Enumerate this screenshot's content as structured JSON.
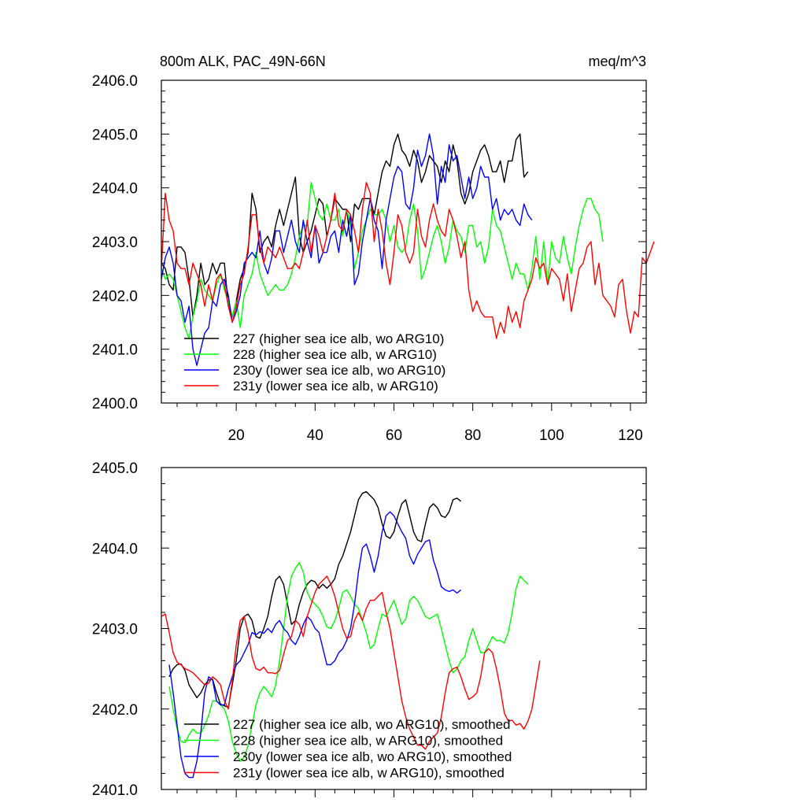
{
  "colors": {
    "s227": "#000000",
    "s228": "#00ff00",
    "s230": "#0000ff",
    "s231": "#ff0000",
    "axis": "#000000",
    "background": "#ffffff"
  },
  "chart_data": [
    {
      "type": "line",
      "title_left": "800m ALK, PAC_49N-66N",
      "title_right": "meq/m^3",
      "xlabel": "",
      "ylabel": "",
      "xlim": [
        1,
        124
      ],
      "ylim": [
        2400.0,
        2406.0
      ],
      "xticks": [
        20,
        40,
        60,
        80,
        100,
        120
      ],
      "yticks": [
        2400.0,
        2401.0,
        2402.0,
        2403.0,
        2404.0,
        2405.0,
        2406.0
      ],
      "ytick_labels": [
        "2400.0",
        "2401.0",
        "2402.0",
        "2403.0",
        "2404.0",
        "2405.0",
        "2406.0"
      ],
      "grid": false,
      "legend_position": "bottom-left",
      "series": [
        {
          "name": "227 (higher sea ice alb, wo ARG10)",
          "color_key": "s227",
          "x_start": 1,
          "values": [
            2402.6,
            2402.5,
            2402.2,
            2402.1,
            2402.9,
            2402.9,
            2402.8,
            2402.3,
            2401.6,
            2402.0,
            2402.6,
            2402.2,
            2402.3,
            2402.6,
            2402.4,
            2402.6,
            2402.6,
            2401.8,
            2401.6,
            2401.9,
            2402.3,
            2402.5,
            2402.8,
            2403.9,
            2403.6,
            2402.8,
            2403.0,
            2403.1,
            2402.9,
            2403.3,
            2403.6,
            2403.3,
            2403.6,
            2403.9,
            2404.2,
            2403.1,
            2402.8,
            2403.0,
            2403.2,
            2403.5,
            2403.8,
            2403.7,
            2403.1,
            2403.4,
            2403.8,
            2403.7,
            2403.6,
            2403.6,
            2403.0,
            2403.7,
            2403.6,
            2403.8,
            2403.8,
            2403.8,
            2403.5,
            2403.9,
            2404.3,
            2404.5,
            2404.4,
            2404.8,
            2405.0,
            2404.7,
            2404.6,
            2404.4,
            2404.7,
            2404.5,
            2404.1,
            2404.3,
            2404.6,
            2404.5,
            2404.4,
            2404.1,
            2404.5,
            2404.3,
            2404.8,
            2404.5,
            2403.9,
            2403.7,
            2403.9,
            2404.3,
            2404.5,
            2404.7,
            2404.8,
            2404.6,
            2404.3,
            2404.3,
            2404.5,
            2404.1,
            2404.5,
            2404.5,
            2404.9,
            2405.0,
            2404.2,
            2404.3
          ]
        },
        {
          "name": "228 (higher sea ice alb, w ARG10)",
          "color_key": "s228",
          "x_start": 1,
          "values": [
            2402.5,
            2402.3,
            2402.4,
            2402.3,
            2402.0,
            2401.7,
            2401.4,
            2401.2,
            2401.6,
            2401.9,
            2402.3,
            2402.1,
            2402.0,
            2401.9,
            2402.2,
            2402.4,
            2402.1,
            2401.9,
            2401.6,
            2401.9,
            2401.4,
            2402.0,
            2402.2,
            2402.4,
            2402.8,
            2402.4,
            2402.2,
            2402.0,
            2402.1,
            2402.2,
            2402.1,
            2402.1,
            2402.2,
            2402.4,
            2402.7,
            2403.1,
            2403.3,
            2403.3,
            2404.1,
            2403.8,
            2403.5,
            2403.4,
            2403.7,
            2403.4,
            2403.4,
            2403.6,
            2403.1,
            2403.6,
            2403.3,
            2402.5,
            2402.8,
            2403.2,
            2403.4,
            2403.6,
            2403.5,
            2403.5,
            2403.6,
            2403.4,
            2403.0,
            2403.3,
            2402.9,
            2402.8,
            2402.9,
            2403.4,
            2403.7,
            2403.2,
            2402.3,
            2402.5,
            2402.8,
            2403.1,
            2403.3,
            2403.0,
            2402.6,
            2402.9,
            2403.4,
            2403.2,
            2403.1,
            2402.8,
            2403.3,
            2403.3,
            2402.9,
            2403.0,
            2402.6,
            2402.9,
            2403.6,
            2403.3,
            2403.2,
            2402.9,
            2402.6,
            2402.3,
            2402.6,
            2402.4,
            2402.4,
            2402.1,
            2402.5,
            2403.1,
            2402.3,
            2403.0,
            2402.2,
            2403.0,
            2402.7,
            2402.6,
            2403.1,
            2402.7,
            2402.4,
            2402.9,
            2403.3,
            2403.6,
            2403.8,
            2403.8,
            2403.6,
            2403.5,
            2403.0
          ]
        },
        {
          "name": "230y (lower sea ice alb, wo ARG10)",
          "color_key": "s230",
          "x_start": 1,
          "values": [
            2402.3,
            2402.7,
            2402.9,
            2402.6,
            2402.0,
            2401.9,
            2401.5,
            2401.8,
            2401.0,
            2400.7,
            2401.0,
            2401.3,
            2401.4,
            2401.9,
            2401.8,
            2402.2,
            2402.3,
            2402.0,
            2401.5,
            2401.7,
            2402.0,
            2402.6,
            2402.7,
            2402.8,
            2402.7,
            2403.2,
            2402.6,
            2402.4,
            2402.7,
            2403.2,
            2403.2,
            2402.8,
            2403.1,
            2403.4,
            2403.0,
            2402.8,
            2403.4,
            2403.0,
            2402.7,
            2403.3,
            2402.6,
            2402.8,
            2402.8,
            2403.1,
            2403.2,
            2402.8,
            2403.4,
            2403.1,
            2403.5,
            2402.2,
            2402.4,
            2403.0,
            2403.4,
            2403.8,
            2403.4,
            2403.2,
            2402.5,
            2403.4,
            2403.8,
            2404.2,
            2404.4,
            2404.3,
            2403.7,
            2403.6,
            2404.0,
            2404.7,
            2404.4,
            2404.6,
            2405.0,
            2404.6,
            2403.7,
            2404.4,
            2404.1,
            2404.8,
            2404.5,
            2404.6,
            2404.2,
            2403.8,
            2404.2,
            2403.8,
            2404.0,
            2404.4,
            2404.2,
            2404.2,
            2403.6,
            2403.8,
            2403.4,
            2403.6,
            2403.5,
            2403.6,
            2403.4,
            2403.3,
            2403.7,
            2403.5,
            2403.4
          ]
        },
        {
          "name": "231y (lower sea ice alb, w ARG10)",
          "color_key": "s231",
          "x_start": 1,
          "values": [
            2402.5,
            2403.9,
            2403.4,
            2403.2,
            2402.6,
            2402.5,
            2402.5,
            2402.2,
            2402.6,
            2402.4,
            2402.2,
            2401.8,
            2402.2,
            2401.9,
            2402.3,
            2402.4,
            2402.2,
            2401.8,
            2401.5,
            2401.8,
            2402.2,
            2402.4,
            2402.9,
            2403.5,
            2403.5,
            2402.9,
            2402.6,
            2402.9,
            2402.8,
            2402.7,
            2402.9,
            2402.7,
            2402.5,
            2402.5,
            2402.6,
            2402.5,
            2402.8,
            2403.4,
            2402.8,
            2403.3,
            2403.1,
            2402.8,
            2403.1,
            2403.4,
            2403.9,
            2403.3,
            2403.2,
            2403.6,
            2403.5,
            2403.2,
            2402.8,
            2403.6,
            2404.1,
            2403.9,
            2403.0,
            2403.6,
            2403.2,
            2402.6,
            2402.2,
            2402.8,
            2403.5,
            2403.3,
            2402.8,
            2402.6,
            2402.8,
            2403.6,
            2403.1,
            2402.9,
            2403.4,
            2403.7,
            2403.4,
            2403.2,
            2403.1,
            2403.6,
            2403.4,
            2403.1,
            2402.7,
            2403.0,
            2402.1,
            2401.7,
            2401.9,
            2401.7,
            2401.6,
            2401.6,
            2401.6,
            2401.2,
            2401.5,
            2401.3,
            2401.8,
            2401.5,
            2401.7,
            2401.4,
            2401.9,
            2402.1,
            2402.3,
            2402.7,
            2402.5,
            2402.6,
            2402.2,
            2402.5,
            2402.4,
            2402.3,
            2401.9,
            2402.4,
            2401.7,
            2402.1,
            2402.5,
            2402.6,
            2402.9,
            2403.0,
            2402.2,
            2402.6,
            2402.0,
            2401.9,
            2401.8,
            2401.6,
            2402.2,
            2402.3,
            2401.7,
            2401.3,
            2401.7,
            2401.6,
            2402.7,
            2402.6,
            2402.8,
            2403.0
          ]
        }
      ]
    },
    {
      "type": "line",
      "title_left": "",
      "title_right": "",
      "xlabel": "",
      "ylabel": "",
      "xlim": [
        1,
        124
      ],
      "ylim": [
        2401.0,
        2405.0
      ],
      "xticks": [
        20,
        40,
        60,
        80,
        100,
        120
      ],
      "yticks": [
        2401.0,
        2402.0,
        2403.0,
        2404.0,
        2405.0
      ],
      "ytick_labels": [
        "2401.0",
        "2402.0",
        "2403.0",
        "2404.0",
        "2405.0"
      ],
      "grid": false,
      "legend_position": "bottom-left",
      "series": [
        {
          "name": "227 (higher sea ice alb, wo ARG10), smoothed",
          "color_key": "s227",
          "x_start": 3,
          "values": [
            2402.4,
            2402.5,
            2402.55,
            2402.56,
            2402.48,
            2402.3,
            2402.22,
            2402.14,
            2402.2,
            2402.3,
            2402.36,
            2402.37,
            2402.2,
            2402.06,
            2402.04,
            2402.02,
            2402.3,
            2402.6,
            2403.0,
            2403.15,
            2403.18,
            2403.1,
            2402.9,
            2402.88,
            2403.0,
            2403.15,
            2403.4,
            2403.6,
            2403.65,
            2403.55,
            2403.3,
            2403.05,
            2403.1,
            2403.3,
            2403.45,
            2403.55,
            2403.6,
            2403.58,
            2403.5,
            2403.55,
            2403.5,
            2403.55,
            2403.62,
            2403.8,
            2403.9,
            2404.05,
            2404.2,
            2404.4,
            2404.6,
            2404.68,
            2404.7,
            2404.65,
            2404.6,
            2404.5,
            2404.3,
            2404.15,
            2404.12,
            2404.2,
            2404.4,
            2404.55,
            2404.6,
            2404.4,
            2404.2,
            2404.1,
            2404.08,
            2404.3,
            2404.5,
            2404.55,
            2404.5,
            2404.4,
            2404.38,
            2404.45,
            2404.6,
            2404.62,
            2404.58
          ]
        },
        {
          "name": "228 (higher sea ice alb, w ARG10), smoothed",
          "color_key": "s228",
          "x_start": 3,
          "values": [
            2402.28,
            2402.0,
            2401.75,
            2401.6,
            2401.58,
            2401.68,
            2401.75,
            2401.7,
            2401.7,
            2401.8,
            2401.92,
            2402.1,
            2402.1,
            2402.05,
            2402.0,
            2401.85,
            2401.6,
            2401.45,
            2401.35,
            2401.4,
            2401.55,
            2401.8,
            2402.05,
            2402.2,
            2402.28,
            2402.22,
            2402.15,
            2402.3,
            2402.6,
            2403.0,
            2403.4,
            2403.65,
            2403.75,
            2403.82,
            2403.7,
            2403.45,
            2403.35,
            2403.3,
            2403.25,
            2403.15,
            2403.02,
            2403.0,
            2403.1,
            2403.25,
            2403.45,
            2403.48,
            2403.4,
            2403.3,
            2403.25,
            2403.1,
            2402.95,
            2402.75,
            2402.8,
            2403.0,
            2403.18,
            2403.15,
            2403.25,
            2403.35,
            2403.2,
            2403.05,
            2403.12,
            2403.35,
            2403.4,
            2403.35,
            2403.25,
            2403.15,
            2403.12,
            2403.15,
            2403.18,
            2403.0,
            2402.8,
            2402.6,
            2402.45,
            2402.5,
            2402.6,
            2402.65,
            2402.85,
            2403.0,
            2402.85,
            2402.7,
            2402.7,
            2402.8,
            2402.9,
            2402.85,
            2402.85,
            2402.82,
            2402.95,
            2403.2,
            2403.5,
            2403.65,
            2403.6,
            2403.55
          ]
        },
        {
          "name": "230y (lower sea ice alb, wo ARG10), smoothed",
          "color_key": "s230",
          "x_start": 3,
          "values": [
            2402.55,
            2402.2,
            2401.8,
            2401.4,
            2401.2,
            2401.15,
            2401.15,
            2401.35,
            2401.7,
            2402.2,
            2402.4,
            2402.36,
            2402.1,
            2402.05,
            2402.05,
            2402.25,
            2402.4,
            2402.55,
            2402.6,
            2402.7,
            2402.8,
            2402.95,
            2402.92,
            2402.96,
            2402.94,
            2403.0,
            2402.95,
            2403.05,
            2403.1,
            2403.0,
            2402.95,
            2402.85,
            2402.8,
            2402.9,
            2403.05,
            2403.15,
            2403.1,
            2403.0,
            2402.95,
            2402.75,
            2402.55,
            2402.55,
            2402.6,
            2402.7,
            2402.75,
            2402.85,
            2403.0,
            2403.3,
            2403.7,
            2404.0,
            2404.05,
            2403.9,
            2403.7,
            2403.9,
            2404.2,
            2404.4,
            2404.45,
            2404.4,
            2404.3,
            2404.2,
            2404.12,
            2403.9,
            2403.8,
            2403.92,
            2404.0,
            2404.08,
            2404.1,
            2403.85,
            2403.7,
            2403.52,
            2403.48,
            2403.46,
            2403.48,
            2403.44,
            2403.48
          ]
        },
        {
          "name": "231y (lower sea ice alb, w ARG10), smoothed",
          "color_key": "s231",
          "x_start": 1,
          "values": [
            2403.15,
            2403.18,
            2402.95,
            2402.7,
            2402.58,
            2402.55,
            2402.5,
            2402.48,
            2402.45,
            2402.4,
            2402.35,
            2402.3,
            2402.32,
            2402.4,
            2402.36,
            2402.3,
            2402.1,
            2402.0,
            2402.35,
            2402.8,
            2403.1,
            2403.15,
            2402.95,
            2402.65,
            2402.5,
            2402.48,
            2402.52,
            2402.45,
            2402.45,
            2402.44,
            2402.48,
            2402.68,
            2402.85,
            2402.9,
            2403.1,
            2403.05,
            2402.9,
            2403.15,
            2403.3,
            2403.45,
            2403.55,
            2403.6,
            2403.65,
            2403.55,
            2403.4,
            2403.2,
            2403.0,
            2402.88,
            2402.9,
            2403.1,
            2403.2,
            2403.1,
            2403.25,
            2403.35,
            2403.35,
            2403.4,
            2403.45,
            2403.2,
            2403.0,
            2402.7,
            2402.4,
            2402.1,
            2401.9,
            2401.75,
            2401.65,
            2401.55,
            2401.55,
            2401.5,
            2401.6,
            2401.65,
            2401.7,
            2401.9,
            2402.2,
            2402.45,
            2402.5,
            2402.52,
            2402.4,
            2402.25,
            2402.12,
            2402.15,
            2402.2,
            2402.4,
            2402.7,
            2402.75,
            2402.7,
            2402.5,
            2402.25,
            2401.95,
            2401.85,
            2401.86,
            2401.8,
            2401.82,
            2401.75,
            2401.85,
            2402.0,
            2402.3,
            2402.6
          ]
        }
      ]
    }
  ]
}
